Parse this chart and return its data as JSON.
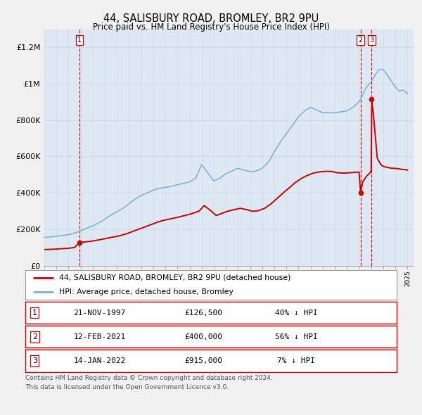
{
  "title": "44, SALISBURY ROAD, BROMLEY, BR2 9PU",
  "subtitle": "Price paid vs. HM Land Registry's House Price Index (HPI)",
  "legend_label_red": "44, SALISBURY ROAD, BROMLEY, BR2 9PU (detached house)",
  "legend_label_blue": "HPI: Average price, detached house, Bromley",
  "footer_line1": "Contains HM Land Registry data © Crown copyright and database right 2024.",
  "footer_line2": "This data is licensed under the Open Government Licence v3.0.",
  "transactions": [
    {
      "label": "1",
      "date": "21-NOV-1997",
      "price": "£126,500",
      "pct": "40% ↓ HPI",
      "year": 1997.9
    },
    {
      "label": "2",
      "date": "12-FEB-2021",
      "price": "£400,000",
      "pct": "56% ↓ HPI",
      "year": 2021.12
    },
    {
      "label": "3",
      "date": "14-JAN-2022",
      "price": "£915,000",
      "pct": "7% ↓ HPI",
      "year": 2022.04
    }
  ],
  "transaction_values": [
    126500,
    400000,
    915000
  ],
  "red_color": "#cc0000",
  "blue_color": "#7ab0d4",
  "vline_color": "#cc0000",
  "grid_color": "#d0dce8",
  "background_color": "#e8f0f8",
  "chart_bg": "#dde8f2",
  "box_color": "#ffffff",
  "ylim": [
    0,
    1300000
  ],
  "xlim_start": 1995.0,
  "xlim_end": 2025.5,
  "yticks": [
    0,
    200000,
    400000,
    600000,
    800000,
    1000000,
    1200000
  ],
  "ytick_labels": [
    "£0",
    "£200K",
    "£400K",
    "£600K",
    "£800K",
    "£1M",
    "£1.2M"
  ]
}
